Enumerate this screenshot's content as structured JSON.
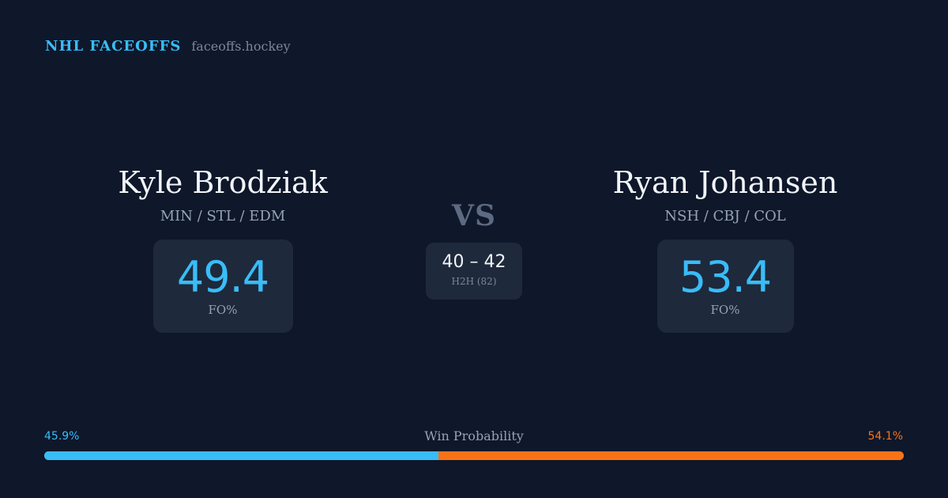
{
  "brand": {
    "name": "NHL FACEOFFS",
    "domain": "faceoffs.hockey"
  },
  "player1": {
    "name": "Kyle Brodziak",
    "teams": "MIN / STL / EDM",
    "fo_pct": "49.4",
    "fo_label": "FO%"
  },
  "player2": {
    "name": "Ryan Johansen",
    "teams": "NSH / CBJ / COL",
    "fo_pct": "53.4",
    "fo_label": "FO%"
  },
  "versus": {
    "label": "VS",
    "h2h_score": "40 – 42",
    "h2h_label": "H2H (82)"
  },
  "win_probability": {
    "title": "Win Probability",
    "left_text": "45.9%",
    "right_text": "54.1%",
    "left_value": 45.9,
    "right_value": 54.1
  },
  "colors": {
    "background": "#0f172a",
    "card": "#1e293b",
    "accent_blue": "#38bdf8",
    "accent_orange": "#f97316"
  }
}
